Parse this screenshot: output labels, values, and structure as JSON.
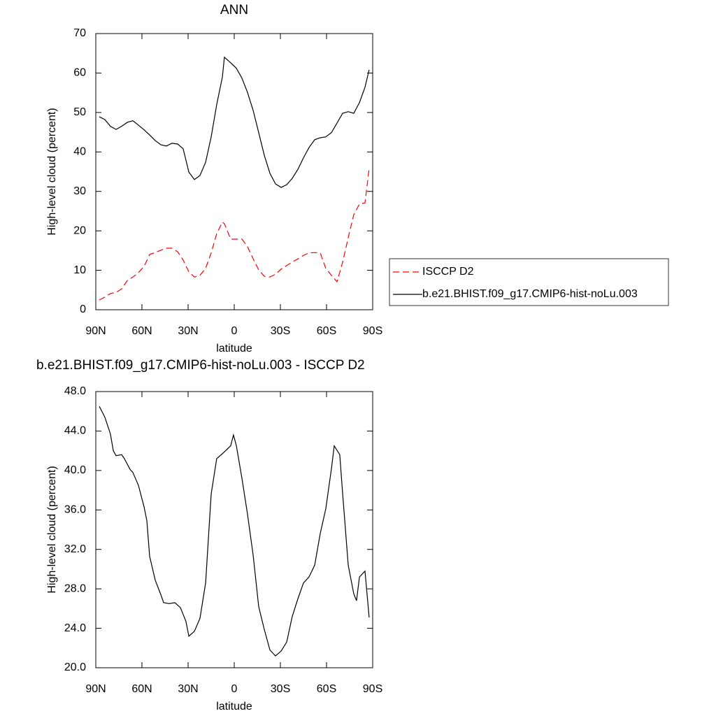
{
  "chart_data": [
    {
      "type": "line",
      "title": "ANN",
      "xlabel": "latitude",
      "ylabel": "High-level cloud (percent)",
      "x": [
        87.7,
        84.1,
        80.5,
        76.8,
        73.2,
        69.5,
        65.9,
        62.3,
        58.6,
        55.0,
        51.4,
        47.7,
        44.1,
        40.5,
        36.8,
        33.2,
        29.5,
        25.9,
        22.3,
        18.6,
        15.0,
        11.4,
        7.7,
        6.4,
        2.3,
        -1.4,
        -5.0,
        -8.6,
        -12.3,
        -15.9,
        -19.5,
        -23.2,
        -26.8,
        -30.5,
        -34.1,
        -37.7,
        -41.4,
        -45.0,
        -48.6,
        -52.3,
        -55.9,
        -59.5,
        -63.2,
        -66.8,
        -70.5,
        -74.1,
        -77.7,
        -81.4,
        -85.0,
        -87.7
      ],
      "series": [
        {
          "name": "ISCCP D2",
          "color": "#ff0000",
          "linestyle": "dashed",
          "values": [
            2.5,
            3.2,
            4.1,
            4.4,
            5.3,
            7.4,
            8.3,
            9.4,
            11.0,
            14.0,
            14.5,
            15.1,
            15.6,
            15.6,
            14.7,
            12.6,
            9.6,
            8.3,
            8.7,
            10.5,
            14.4,
            19.3,
            22.2,
            21.8,
            17.9,
            17.9,
            17.9,
            16.0,
            12.9,
            10.1,
            8.5,
            8.3,
            9.0,
            10.3,
            11.2,
            12.1,
            12.9,
            13.8,
            14.4,
            14.5,
            14.4,
            10.5,
            8.7,
            7.1,
            12.1,
            18.3,
            24.1,
            26.8,
            27.1,
            35.8
          ]
        },
        {
          "name": "b.e21.BHIST.f09_g17.CMIP6-hist-noLu.003",
          "color": "#000000",
          "linestyle": "solid",
          "values": [
            48.9,
            48.2,
            46.5,
            45.7,
            46.5,
            47.5,
            47.9,
            46.8,
            45.6,
            44.3,
            42.9,
            41.8,
            41.5,
            42.2,
            42.0,
            40.8,
            34.9,
            33.0,
            34.0,
            37.4,
            43.8,
            52.0,
            59.0,
            64.0,
            62.6,
            61.2,
            58.7,
            55.1,
            50.5,
            44.9,
            39.2,
            34.6,
            31.9,
            31.0,
            31.7,
            33.3,
            35.6,
            38.5,
            41.1,
            43.1,
            43.6,
            43.8,
            44.9,
            47.3,
            49.8,
            50.2,
            49.8,
            52.5,
            56.4,
            60.8
          ]
        }
      ],
      "xlim": [
        90,
        -90
      ],
      "xticks": [
        {
          "value": 90,
          "label": "90N"
        },
        {
          "value": 60,
          "label": "60N"
        },
        {
          "value": 30,
          "label": "30N"
        },
        0,
        {
          "value": -30,
          "label": "30S"
        },
        {
          "value": -60,
          "label": "60S"
        },
        {
          "value": -90,
          "label": "90S"
        }
      ],
      "ylim": [
        0,
        70
      ],
      "yticks": [
        0,
        10,
        20,
        30,
        40,
        50,
        60,
        70
      ],
      "legend": "right"
    },
    {
      "type": "line",
      "title": "b.e21.BHIST.f09_g17.CMIP6-hist-noLu.003 - ISCCP D2",
      "xlabel": "latitude",
      "ylabel": "High-level cloud (percent)",
      "x": [
        87.7,
        84.1,
        80.5,
        78.6,
        76.8,
        73.2,
        71.4,
        67.7,
        65.9,
        62.3,
        58.6,
        56.8,
        55.0,
        51.4,
        47.7,
        45.9,
        42.3,
        38.6,
        35.0,
        31.4,
        29.5,
        25.9,
        22.3,
        18.6,
        15.0,
        11.4,
        7.7,
        2.3,
        0.5,
        -1.4,
        -5.0,
        -8.6,
        -12.3,
        -15.9,
        -19.5,
        -23.2,
        -26.8,
        -30.5,
        -34.1,
        -37.7,
        -41.4,
        -45.0,
        -48.6,
        -52.3,
        -55.9,
        -59.5,
        -63.2,
        -65.0,
        -68.6,
        -70.5,
        -74.1,
        -77.7,
        -79.5,
        -81.4,
        -85.0,
        -87.7
      ],
      "series": [
        {
          "color": "#000000",
          "linestyle": "solid",
          "values": [
            46.5,
            45.4,
            43.7,
            42.0,
            41.5,
            41.6,
            41.2,
            40.1,
            39.8,
            38.5,
            36.3,
            34.9,
            31.3,
            28.9,
            27.4,
            26.6,
            26.5,
            26.6,
            26.1,
            24.7,
            23.2,
            23.7,
            25.0,
            28.6,
            37.6,
            41.2,
            41.7,
            42.5,
            43.6,
            42.5,
            39.2,
            35.6,
            31.4,
            26.2,
            23.9,
            21.8,
            21.2,
            21.7,
            22.6,
            25.2,
            27.0,
            28.6,
            29.2,
            30.4,
            33.6,
            36.1,
            40.2,
            42.5,
            41.6,
            37.6,
            30.4,
            27.5,
            26.8,
            29.2,
            29.8,
            25.1
          ]
        }
      ],
      "xlim": [
        90,
        -90
      ],
      "xticks": [
        {
          "value": 90,
          "label": "90N"
        },
        {
          "value": 60,
          "label": "60N"
        },
        {
          "value": 30,
          "label": "30N"
        },
        0,
        {
          "value": -30,
          "label": "30S"
        },
        {
          "value": -60,
          "label": "60S"
        },
        {
          "value": -90,
          "label": "90S"
        }
      ],
      "ylim": [
        20,
        48
      ],
      "yticks": [
        {
          "value": 20,
          "label": "20.0"
        },
        {
          "value": 24,
          "label": "24.0"
        },
        {
          "value": 28,
          "label": "28.0"
        },
        {
          "value": 32,
          "label": "32.0"
        },
        {
          "value": 36,
          "label": "36.0"
        },
        {
          "value": 40,
          "label": "40.0"
        },
        {
          "value": 44,
          "label": "44.0"
        },
        {
          "value": 48,
          "label": "48.0"
        }
      ]
    }
  ]
}
